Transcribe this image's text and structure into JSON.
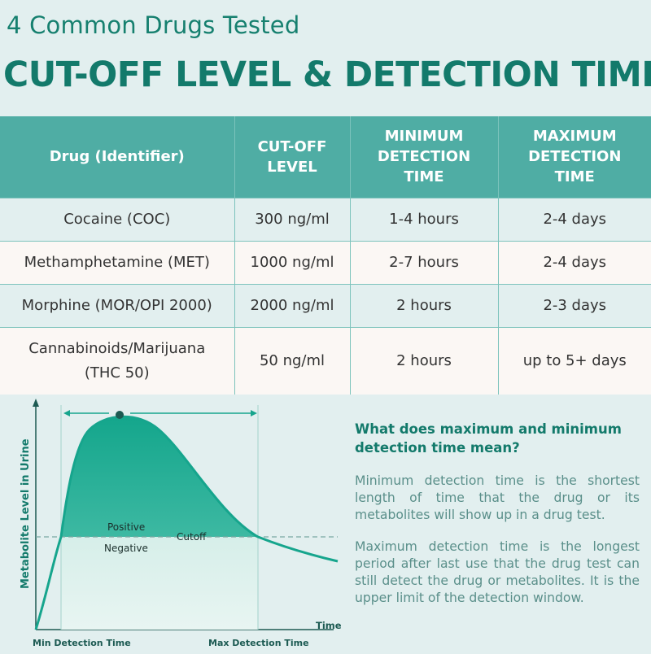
{
  "header": {
    "subtitle": "4 Common Drugs Tested",
    "title": "CUT-OFF LEVEL & DETECTION TIME"
  },
  "table": {
    "columns": [
      [
        "Drug (Identifier)"
      ],
      [
        "CUT-OFF",
        "LEVEL"
      ],
      [
        "MINIMUM",
        "DETECTION",
        "TIME"
      ],
      [
        "MAXIMUM",
        "DETECTION",
        "TIME"
      ]
    ],
    "rows": [
      {
        "drug": [
          "Cocaine (COC)"
        ],
        "cutoff": "300 ng/ml",
        "min": "1-4 hours",
        "max": "2-4 days"
      },
      {
        "drug": [
          "Methamphetamine (MET)"
        ],
        "cutoff": "1000 ng/ml",
        "min": "2-7 hours",
        "max": "2-4 days"
      },
      {
        "drug": [
          "Morphine (MOR/OPI 2000)"
        ],
        "cutoff": "2000 ng/ml",
        "min": "2 hours",
        "max": "2-3 days"
      },
      {
        "drug": [
          "Cannabinoids/Marijuana",
          "(THC 50)"
        ],
        "cutoff": "50 ng/ml",
        "min": "2 hours",
        "max": "up to 5+ days"
      }
    ]
  },
  "diagram": {
    "y_label": "Metabolite Level in Urine",
    "x_label": "Time",
    "positive_label": "Positive",
    "negative_label": "Negative",
    "cutoff_label": "Cutoff",
    "min_label": "Min Detection Time",
    "max_label": "Max Detection Time",
    "colors": {
      "teal": "#16a58d",
      "dark": "#1c5a52"
    }
  },
  "explanation": {
    "question": "What does maximum and minimum detection time mean?",
    "min_text": "Minimum detection time is the shortest length of time that the drug or its metabolites will show up in a drug test.",
    "max_text": "Maximum detection time is the longest period after last use that the drug test can still detect the drug or metabolites. It is the upper limit of the detection window."
  }
}
